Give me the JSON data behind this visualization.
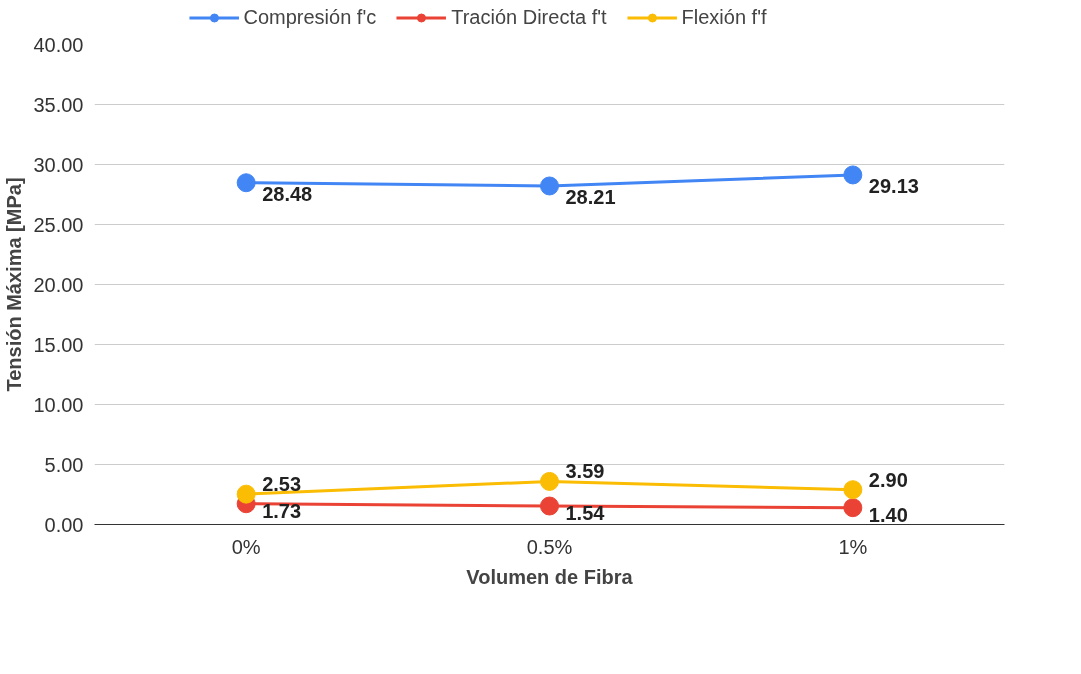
{
  "chart_data": {
    "type": "line",
    "xlabel": "Volumen de Fibra",
    "ylabel": "Tensión Máxima [MPa]",
    "categories": [
      "0%",
      "0.5%",
      "1%"
    ],
    "series": [
      {
        "name": "Compresión f'c",
        "color": "#4285f4",
        "values": [
          28.48,
          28.21,
          29.13
        ],
        "value_labels": [
          "28.48",
          "28.21",
          "29.13"
        ]
      },
      {
        "name": "Tración Directa f't",
        "color": "#ea4335",
        "values": [
          1.73,
          1.54,
          1.4
        ],
        "value_labels": [
          "1.73",
          "1.54",
          "1.40"
        ]
      },
      {
        "name": "Flexión f'f",
        "color": "#fbbc04",
        "values": [
          2.53,
          3.59,
          2.9
        ],
        "value_labels": [
          "2.53",
          "3.59",
          "2.90"
        ]
      }
    ],
    "ylim": [
      0,
      40
    ],
    "yticks": [
      {
        "value": 0,
        "label": "0.00"
      },
      {
        "value": 5,
        "label": "5.00"
      },
      {
        "value": 10,
        "label": "10.00"
      },
      {
        "value": 15,
        "label": "15.00"
      },
      {
        "value": 20,
        "label": "20.00"
      },
      {
        "value": 25,
        "label": "25.00"
      },
      {
        "value": 30,
        "label": "30.00"
      },
      {
        "value": 35,
        "label": "35.00"
      },
      {
        "value": 40,
        "label": "40.00"
      }
    ],
    "grid": "y",
    "legend": "top",
    "marker": "circle",
    "line_style": "solid"
  }
}
